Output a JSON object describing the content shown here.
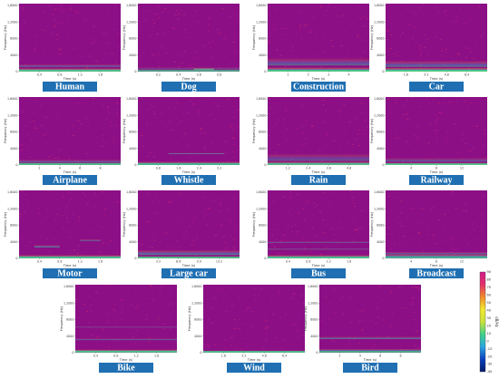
{
  "chart_data": {
    "type": "heatmap",
    "colormap": [
      "#001a6a",
      "#0a3fbf",
      "#2aa6e0",
      "#3fd08a",
      "#c9e23a",
      "#f2e92f",
      "#f28a2a",
      "#e3306a",
      "#d21a8c",
      "#8c0f86"
    ],
    "background_color": "#8c0f86",
    "colorbar": {
      "title": "dB/Hz",
      "ticks": [
        "90",
        "80",
        "70",
        "60",
        "50",
        "40",
        "30",
        "20",
        "10",
        "0",
        "-10",
        "-20",
        "-30",
        "-40"
      ]
    },
    "shared": {
      "ylabel": "Frequency (Hz)",
      "xlabel": "Time (s)",
      "yticks": [
        "1,6000",
        "1,2000",
        "8000",
        "4000",
        "0"
      ]
    },
    "panels": [
      {
        "label": "Human",
        "xticks": [
          "0.4",
          "0.8",
          "1.2",
          "1.6"
        ],
        "bands": [
          {
            "f": 0.03,
            "w": 0.05,
            "s": 1.0
          },
          {
            "f": 0.09,
            "w": 0.04,
            "s": 0.5
          }
        ]
      },
      {
        "label": "Dog",
        "xticks": [
          "0.2",
          "0.4",
          "0.6",
          "0.8"
        ],
        "bands": [
          {
            "f": 0.05,
            "w": 0.03,
            "s": 0.4
          },
          {
            "f": 0.04,
            "w": 0.03,
            "s": 0.9,
            "t0": 0.55,
            "t1": 0.75
          }
        ]
      },
      {
        "label": "Construction",
        "xticks": [
          "1",
          "2",
          "3",
          "4"
        ],
        "bands": [
          {
            "f": 0.03,
            "w": 0.08,
            "s": 0.9
          },
          {
            "f": 0.15,
            "w": 0.12,
            "s": 0.45
          }
        ]
      },
      {
        "label": "Car",
        "xticks": [
          "1.6",
          "3.2",
          "4.8",
          "6.4"
        ],
        "bands": [
          {
            "f": 0.03,
            "w": 0.07,
            "s": 1.0
          },
          {
            "f": 0.12,
            "w": 0.1,
            "s": 0.5
          }
        ]
      },
      {
        "label": "Airplane",
        "xticks": [
          "2",
          "4",
          "6",
          "8"
        ],
        "bands": [
          {
            "f": 0.02,
            "w": 0.03,
            "s": 1.0
          },
          {
            "f": 0.06,
            "w": 0.05,
            "s": 0.45
          }
        ]
      },
      {
        "label": "Whistle",
        "xticks": [
          "0.8",
          "1.6",
          "2.4",
          "3.2"
        ],
        "bands": [
          {
            "f": 0.03,
            "w": 0.05,
            "s": 0.8
          },
          {
            "f": 0.17,
            "w": 0.02,
            "s": 0.7,
            "t0": 0.3,
            "t1": 0.85
          }
        ]
      },
      {
        "label": "Rain",
        "xticks": [
          "1.2",
          "2.4",
          "3.6",
          "4.8"
        ],
        "bands": [
          {
            "f": 0.03,
            "w": 0.05,
            "s": 0.85
          },
          {
            "f": 0.12,
            "w": 0.12,
            "s": 0.35
          }
        ]
      },
      {
        "label": "Railway",
        "xticks": [
          "4",
          "8",
          "12"
        ],
        "bands": [
          {
            "f": 0.02,
            "w": 0.04,
            "s": 0.9
          },
          {
            "f": 0.08,
            "w": 0.06,
            "s": 0.4
          }
        ]
      },
      {
        "label": "Motor",
        "xticks": [
          "0.4",
          "0.8",
          "1.2",
          "1.6"
        ],
        "bands": [
          {
            "f": 0.03,
            "w": 0.05,
            "s": 0.9
          },
          {
            "f": 0.18,
            "w": 0.04,
            "s": 0.6,
            "t0": 0.15,
            "t1": 0.4
          },
          {
            "f": 0.27,
            "w": 0.03,
            "s": 0.5,
            "t0": 0.6,
            "t1": 0.8
          }
        ]
      },
      {
        "label": "Large car",
        "xticks": [
          "3.3",
          "6.6",
          "9.9",
          "13.2"
        ],
        "bands": [
          {
            "f": 0.02,
            "w": 0.03,
            "s": 1.0
          },
          {
            "f": 0.09,
            "w": 0.08,
            "s": 0.55
          }
        ]
      },
      {
        "label": "Bus",
        "xticks": [
          "0.4",
          "0.8",
          "1.2",
          "1.6"
        ],
        "bands": [
          {
            "f": 0.03,
            "w": 0.05,
            "s": 0.9
          },
          {
            "f": 0.24,
            "w": 0.02,
            "s": 0.55
          },
          {
            "f": 0.14,
            "w": 0.02,
            "s": 0.45
          }
        ]
      },
      {
        "label": "Broadcast",
        "xticks": [
          "4",
          "8",
          "12"
        ],
        "bands": [
          {
            "f": 0.04,
            "w": 0.05,
            "s": 0.8
          },
          {
            "f": 0.08,
            "w": 0.04,
            "s": 0.5
          }
        ]
      },
      {
        "label": "Bike",
        "xticks": [
          "0.4",
          "0.8",
          "1.2",
          "1.6"
        ],
        "bands": [
          {
            "f": 0.03,
            "w": 0.04,
            "s": 1.0
          },
          {
            "f": 0.2,
            "w": 0.03,
            "s": 0.45
          },
          {
            "f": 0.38,
            "w": 0.02,
            "s": 0.35
          }
        ]
      },
      {
        "label": "Wind",
        "xticks": [
          "1.6",
          "3.2",
          "4.8",
          "6.4"
        ],
        "bands": [
          {
            "f": 0.02,
            "w": 0.03,
            "s": 0.9
          }
        ]
      },
      {
        "label": "Bird",
        "xticks": [
          "2",
          "4",
          "6",
          "8"
        ],
        "bands": [
          {
            "f": 0.04,
            "w": 0.04,
            "s": 0.6
          },
          {
            "f": 0.22,
            "w": 0.04,
            "s": 0.55
          }
        ]
      }
    ]
  }
}
